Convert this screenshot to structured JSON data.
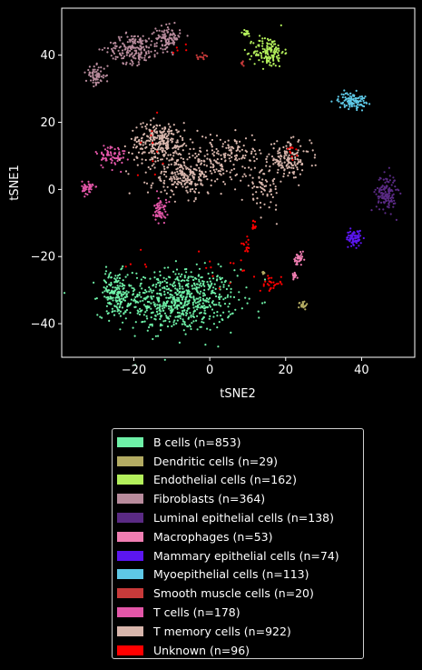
{
  "chart_data": {
    "type": "scatter",
    "xlabel": "tSNE2",
    "ylabel": "tSNE1",
    "xlim": [
      -39,
      54
    ],
    "ylim": [
      -50,
      54
    ],
    "xticks": [
      -20,
      0,
      20,
      40
    ],
    "yticks": [
      -40,
      -20,
      0,
      20,
      40
    ],
    "grid": false,
    "legend_position": "below",
    "series": [
      {
        "name": "B cells (n=853)",
        "color": "#6ef0a7",
        "clusters": [
          {
            "cx": -8,
            "cy": -33,
            "sx": 7.5,
            "sy": 4.6,
            "n": 700
          },
          {
            "cx": -25,
            "cy": -31,
            "sx": 2.2,
            "sy": 3.3,
            "n": 153
          }
        ]
      },
      {
        "name": "Dendritic cells (n=29)",
        "color": "#b3ab62",
        "clusters": [
          {
            "cx": 24.5,
            "cy": -34.5,
            "sx": 0.5,
            "sy": 0.6,
            "n": 23
          },
          {
            "cx": 14.5,
            "cy": -25,
            "sx": 0.4,
            "sy": 0.4,
            "n": 6
          }
        ]
      },
      {
        "name": "Endothelial cells (n=162)",
        "color": "#b3ef5b",
        "clusters": [
          {
            "cx": 15.5,
            "cy": 41,
            "sx": 2.0,
            "sy": 2.3,
            "n": 145
          },
          {
            "cx": 9.5,
            "cy": 46.5,
            "sx": 0.8,
            "sy": 0.5,
            "n": 17
          }
        ]
      },
      {
        "name": "Fibroblasts (n=364)",
        "color": "#b88b9c",
        "clusters": [
          {
            "cx": -20,
            "cy": 42,
            "sx": 3.4,
            "sy": 2.2,
            "n": 190
          },
          {
            "cx": -11,
            "cy": 45,
            "sx": 1.6,
            "sy": 1.8,
            "n": 104
          },
          {
            "cx": -30,
            "cy": 34,
            "sx": 1.3,
            "sy": 1.4,
            "n": 70
          }
        ]
      },
      {
        "name": "Luminal epithelial cells (n=138)",
        "color": "#5a2a84",
        "clusters": [
          {
            "cx": 46.5,
            "cy": -1,
            "sx": 1.3,
            "sy": 2.8,
            "n": 138
          }
        ]
      },
      {
        "name": "Macrophages (n=53)",
        "color": "#f07eb2",
        "clusters": [
          {
            "cx": 23.5,
            "cy": -21,
            "sx": 0.7,
            "sy": 1.0,
            "n": 38
          },
          {
            "cx": 22.5,
            "cy": -25.5,
            "sx": 0.4,
            "sy": 0.5,
            "n": 15
          }
        ]
      },
      {
        "name": "Mammary epithelial cells (n=74)",
        "color": "#5b16f0",
        "clusters": [
          {
            "cx": 38,
            "cy": -14.5,
            "sx": 1.0,
            "sy": 1.2,
            "n": 74
          }
        ]
      },
      {
        "name": "Myoepithelial cells (n=113)",
        "color": "#5ec8e6",
        "clusters": [
          {
            "cx": 37.5,
            "cy": 26.5,
            "sx": 1.8,
            "sy": 1.2,
            "n": 113
          }
        ]
      },
      {
        "name": "Smooth muscle cells (n=20)",
        "color": "#c83a3a",
        "clusters": [
          {
            "cx": -2,
            "cy": 39.5,
            "sx": 0.8,
            "sy": 0.4,
            "n": 14
          },
          {
            "cx": 8.5,
            "cy": 37.5,
            "sx": 0.3,
            "sy": 0.4,
            "n": 6
          }
        ]
      },
      {
        "name": "T cells (n=178)",
        "color": "#e356a8",
        "clusters": [
          {
            "cx": -26,
            "cy": 10,
            "sx": 2.0,
            "sy": 1.8,
            "n": 70
          },
          {
            "cx": -32,
            "cy": 0.5,
            "sx": 0.8,
            "sy": 1.0,
            "n": 45
          },
          {
            "cx": -13,
            "cy": -6,
            "sx": 0.8,
            "sy": 2.0,
            "n": 63
          }
        ]
      },
      {
        "name": "T memory cells (n=922)",
        "color": "#d8b6ac",
        "clusters": [
          {
            "cx": -13,
            "cy": 14,
            "sx": 4.0,
            "sy": 3.0,
            "n": 300
          },
          {
            "cx": -6,
            "cy": 4,
            "sx": 5.0,
            "sy": 3.0,
            "n": 260
          },
          {
            "cx": 5,
            "cy": 10,
            "sx": 6.0,
            "sy": 3.0,
            "n": 150
          },
          {
            "cx": 21,
            "cy": 9,
            "sx": 2.8,
            "sy": 2.5,
            "n": 142
          },
          {
            "cx": 14,
            "cy": 0,
            "sx": 2.2,
            "sy": 3.0,
            "n": 70
          }
        ]
      },
      {
        "name": "Unknown (n=96)",
        "color": "#ff0000",
        "clusters": [
          {
            "cx": 16.5,
            "cy": -28,
            "sx": 1.6,
            "sy": 1.2,
            "n": 28
          },
          {
            "cx": 9.5,
            "cy": -17,
            "sx": 0.5,
            "sy": 1.2,
            "n": 14
          },
          {
            "cx": 11.5,
            "cy": -11,
            "sx": 0.4,
            "sy": 0.8,
            "n": 12
          },
          {
            "cx": 22,
            "cy": 10.5,
            "sx": 1.0,
            "sy": 1.0,
            "n": 10
          },
          {
            "cx": 4,
            "cy": -24,
            "sx": 4.0,
            "sy": 3.0,
            "n": 12
          },
          {
            "cx": -15,
            "cy": 11,
            "sx": 3.0,
            "sy": 4.0,
            "n": 10
          },
          {
            "cx": -9,
            "cy": 41,
            "sx": 3.0,
            "sy": 2.0,
            "n": 5
          },
          {
            "cx": -18,
            "cy": -21,
            "sx": 2.0,
            "sy": 2.0,
            "n": 5
          }
        ]
      }
    ]
  }
}
